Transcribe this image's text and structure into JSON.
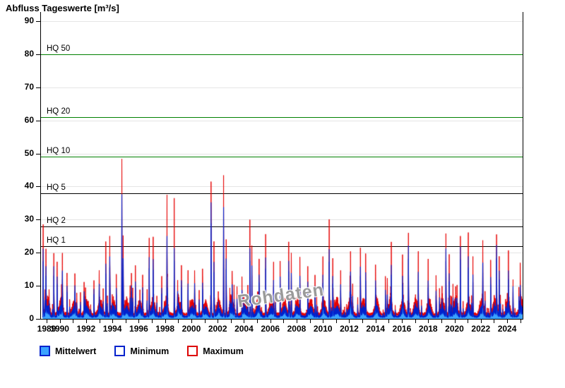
{
  "chart_data": {
    "type": "area",
    "title": "Abfluss Tageswerte [m³/s]",
    "watermark": "Rohdaten",
    "x_axis": {
      "start": 1988.57,
      "end": 2025.18,
      "tick_year_first": 1989,
      "tick_year_last": 2025,
      "labels": [
        "1989",
        "1990",
        "1992",
        "1994",
        "1996",
        "1998",
        "2000",
        "2002",
        "2004",
        "2006",
        "2008",
        "2010",
        "2012",
        "2014",
        "2016",
        "2018",
        "2020",
        "2022",
        "2024"
      ]
    },
    "y_axis": {
      "min": 0,
      "max_tick": 90,
      "tick_step": 10,
      "ticks": [
        "0",
        "10",
        "20",
        "30",
        "40",
        "50",
        "60",
        "70",
        "80",
        "90"
      ]
    },
    "hq_lines": [
      {
        "label": "HQ 50",
        "value": 80,
        "color": "#008000"
      },
      {
        "label": "HQ 20",
        "value": 61,
        "color": "#008000"
      },
      {
        "label": "HQ 10",
        "value": 49,
        "color": "#008000"
      },
      {
        "label": "HQ 5",
        "value": 38,
        "color": "#000000"
      },
      {
        "label": "HQ 2",
        "value": 28,
        "color": "#000000"
      },
      {
        "label": "HQ 1",
        "value": 22,
        "color": "#000000"
      }
    ],
    "legend": [
      {
        "label": "Mittelwert",
        "fill": "#3BA3FF",
        "border": "#0022CC"
      },
      {
        "label": "Minimum",
        "fill": "#FFFFFF",
        "border": "#0022CC"
      },
      {
        "label": "Maximum",
        "fill": "#FFFFFF",
        "border": "#DD0000"
      }
    ],
    "colors": {
      "mean_fill": "#3BA3FF",
      "mean_stroke": "#0022CC",
      "max_line": "#E60000",
      "grid": "#E5E5E5",
      "axis": "#000000"
    },
    "flood_events": [
      [
        1988.74,
        28.0,
        21.0
      ],
      [
        1988.95,
        18.0,
        14.0
      ],
      [
        1989.55,
        19.0,
        15.5
      ],
      [
        1989.8,
        16.0,
        12.0
      ],
      [
        1990.2,
        17.5,
        13.0
      ],
      [
        1990.55,
        13.5,
        10.0
      ],
      [
        1991.15,
        10.0,
        8.0
      ],
      [
        1991.85,
        9.5,
        7.5
      ],
      [
        1992.6,
        10.5,
        8.5
      ],
      [
        1993.0,
        10.5,
        8.0
      ],
      [
        1993.5,
        23.5,
        17.0
      ],
      [
        1993.8,
        23.5,
        18.0
      ],
      [
        1994.3,
        13.0,
        9.0
      ],
      [
        1994.72,
        41.5,
        34.0
      ],
      [
        1994.82,
        26.0,
        19.0
      ],
      [
        1995.45,
        14.0,
        10.5
      ],
      [
        1995.75,
        15.5,
        11.0
      ],
      [
        1996.3,
        11.0,
        8.0
      ],
      [
        1996.8,
        22.8,
        17.5
      ],
      [
        1997.1,
        21.0,
        16.0
      ],
      [
        1997.75,
        12.0,
        9.0
      ],
      [
        1998.15,
        33.5,
        23.0
      ],
      [
        1998.7,
        35.5,
        21.0
      ],
      [
        1999.25,
        15.0,
        11.0
      ],
      [
        1999.75,
        13.5,
        10.0
      ],
      [
        2000.25,
        13.0,
        10.0
      ],
      [
        2000.85,
        12.0,
        9.0
      ],
      [
        2001.5,
        42.0,
        36.5
      ],
      [
        2001.72,
        24.0,
        18.0
      ],
      [
        2002.45,
        41.8,
        33.0
      ],
      [
        2002.65,
        24.5,
        19.0
      ],
      [
        2003.1,
        12.5,
        9.0
      ],
      [
        2003.85,
        11.0,
        8.0
      ],
      [
        2004.45,
        29.0,
        21.0
      ],
      [
        2004.6,
        23.0,
        17.0
      ],
      [
        2005.15,
        16.0,
        12.0
      ],
      [
        2005.65,
        25.0,
        18.5
      ],
      [
        2006.25,
        14.0,
        10.0
      ],
      [
        2006.75,
        16.0,
        12.0
      ],
      [
        2007.4,
        21.5,
        16.5
      ],
      [
        2007.6,
        18.0,
        13.0
      ],
      [
        2008.25,
        17.0,
        12.0
      ],
      [
        2008.85,
        14.0,
        10.0
      ],
      [
        2009.4,
        12.5,
        9.5
      ],
      [
        2010.0,
        14.0,
        10.0
      ],
      [
        2010.48,
        30.5,
        21.5
      ],
      [
        2010.75,
        18.0,
        13.0
      ],
      [
        2011.35,
        13.5,
        10.0
      ],
      [
        2012.1,
        17.0,
        12.5
      ],
      [
        2012.85,
        18.5,
        14.0
      ],
      [
        2013.25,
        17.5,
        13.0
      ],
      [
        2014.0,
        13.0,
        9.0
      ],
      [
        2014.75,
        12.0,
        8.5
      ],
      [
        2015.2,
        20.0,
        14.0
      ],
      [
        2016.05,
        16.0,
        11.0
      ],
      [
        2016.5,
        24.5,
        21.5
      ],
      [
        2017.25,
        18.0,
        13.0
      ],
      [
        2018.0,
        13.5,
        9.0
      ],
      [
        2018.6,
        12.0,
        8.0
      ],
      [
        2019.35,
        25.5,
        21.5
      ],
      [
        2019.6,
        18.0,
        13.0
      ],
      [
        2020.45,
        21.8,
        20.0
      ],
      [
        2021.05,
        22.5,
        17.0
      ],
      [
        2021.4,
        18.0,
        13.0
      ],
      [
        2022.15,
        21.5,
        16.0
      ],
      [
        2022.75,
        16.5,
        12.0
      ],
      [
        2023.2,
        25.0,
        22.3
      ],
      [
        2023.4,
        16.0,
        13.0
      ],
      [
        2024.1,
        15.0,
        11.0
      ],
      [
        2024.45,
        11.0,
        9.5
      ],
      [
        2025.0,
        13.0,
        7.5
      ]
    ]
  }
}
